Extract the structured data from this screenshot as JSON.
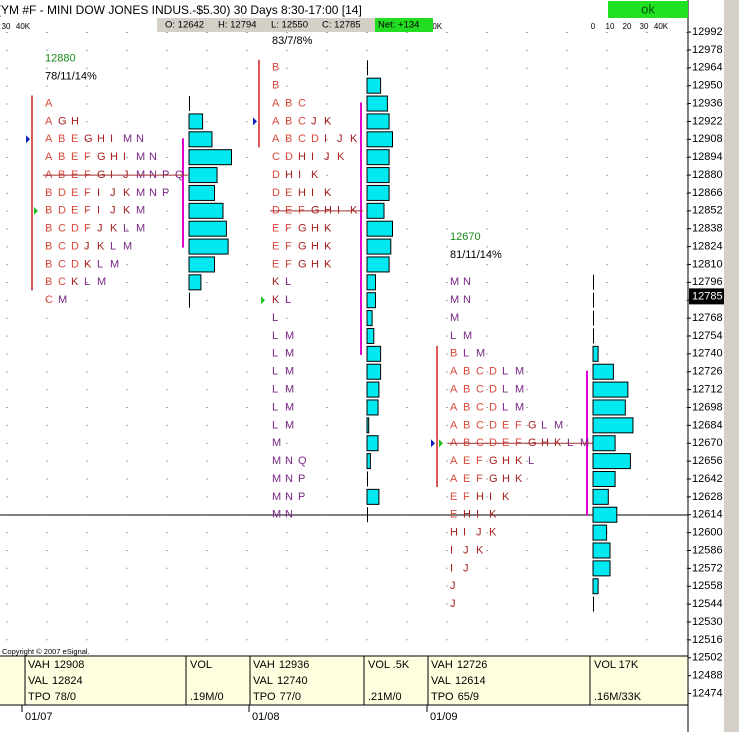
{
  "chart_data": {
    "type": "market-profile",
    "title": "(YM #F - MINI DOW JONES INDUS.-$5.30) 30 Days 8:30-17:00 [14]",
    "quote": [
      "O: 12642",
      "H: 12794",
      "L: 12550",
      "C: 12785",
      "Net: +134"
    ],
    "status": "ok",
    "copyright": "Copyright © 2007 eSignal.",
    "ylim": [
      12465,
      13003
    ],
    "yticks": [
      12992,
      12978,
      12964,
      12950,
      12936,
      12922,
      12908,
      12894,
      12880,
      12866,
      12852,
      12838,
      12824,
      12810,
      12796,
      12782,
      12768,
      12754,
      12740,
      12726,
      12712,
      12698,
      12684,
      12670,
      12656,
      12642,
      12628,
      12614,
      12600,
      12586,
      12572,
      12558,
      12544,
      12530,
      12516,
      12502,
      12488,
      12474
    ],
    "last_price": 12785,
    "xlim": [
      0,
      40
    ],
    "xticks": [
      0,
      10,
      20,
      30,
      {
        "value": 40,
        "label": "40K"
      }
    ],
    "panel_labels": {
      "vah": "VAH",
      "val": "VAL",
      "tpo": "TPO"
    },
    "profiles": [
      {
        "date": "01/07",
        "poc": 12880,
        "stats": "78/11/14%",
        "strike": 12880,
        "open": 12908,
        "close": 12852,
        "vah": 12908,
        "val": 12824,
        "tpo": "78/0",
        "vol_head": "VOL",
        "vol_total": ".19M/0",
        "prices": [
          12936,
          12922,
          12908,
          12894,
          12880,
          12866,
          12852,
          12838,
          12824,
          12810,
          12796,
          12782
        ],
        "letters": [
          [
            "A"
          ],
          [
            "A",
            "G",
            "H"
          ],
          [
            "A",
            "B",
            "E",
            "G",
            "H",
            "I",
            "M",
            "N"
          ],
          [
            "A",
            "B",
            "E",
            "F",
            "G",
            "H",
            "I",
            "M",
            "N"
          ],
          [
            "A",
            "B",
            "E",
            "F",
            "G",
            "I",
            "J",
            "M",
            "N",
            "P",
            "Q"
          ],
          [
            "B",
            "D",
            "E",
            "F",
            "I",
            "J",
            "K",
            "M",
            "N",
            "P"
          ],
          [
            "B",
            "D",
            "E",
            "F",
            "I",
            "J",
            "K",
            "M"
          ],
          [
            "B",
            "C",
            "D",
            "F",
            "J",
            "K",
            "L",
            "M"
          ],
          [
            "B",
            "C",
            "D",
            "J",
            "K",
            "L",
            "M"
          ],
          [
            "B",
            "C",
            "D",
            "K",
            "L",
            "M"
          ],
          [
            "B",
            "C",
            "K",
            "L",
            "M"
          ],
          [
            "C",
            "M"
          ]
        ],
        "volumes": [
          0.5,
          8,
          13.5,
          25,
          16.5,
          15,
          20,
          22,
          23,
          15,
          7,
          0.5
        ]
      },
      {
        "date": "01/08",
        "stats": "83/7/8%",
        "strike": 12852,
        "open": 12922,
        "close": 12782,
        "vah": 12936,
        "val": 12740,
        "tpo": "77/0",
        "vol_head": "VOL .5K",
        "vol_total": ".21M/0",
        "prices": [
          12964,
          12950,
          12936,
          12922,
          12908,
          12894,
          12880,
          12866,
          12852,
          12838,
          12824,
          12810,
          12796,
          12782,
          12768,
          12754,
          12740,
          12726,
          12712,
          12698,
          12684,
          12670,
          12656,
          12642,
          12628,
          12614
        ],
        "letters": [
          [
            "B"
          ],
          [
            "B"
          ],
          [
            "A",
            "B",
            "C"
          ],
          [
            "A",
            "B",
            "C",
            "J",
            "K"
          ],
          [
            "A",
            "B",
            "C",
            "D",
            "I",
            "J",
            "K"
          ],
          [
            "C",
            "D",
            "H",
            "I",
            "J",
            "K"
          ],
          [
            "D",
            "H",
            "I",
            "K"
          ],
          [
            "D",
            "E",
            "H",
            "I",
            "K"
          ],
          [
            "D",
            "E",
            "F",
            "G",
            "H",
            "I",
            "K"
          ],
          [
            "E",
            "F",
            "G",
            "H",
            "K"
          ],
          [
            "E",
            "F",
            "G",
            "H",
            "K"
          ],
          [
            "E",
            "F",
            "G",
            "H",
            "K"
          ],
          [
            "K",
            "L"
          ],
          [
            "K",
            "L"
          ],
          [
            "L"
          ],
          [
            "L",
            "M"
          ],
          [
            "L",
            "M"
          ],
          [
            "L",
            "M"
          ],
          [
            "L",
            "M"
          ],
          [
            "L",
            "M"
          ],
          [
            "L",
            "M"
          ],
          [
            "M"
          ],
          [
            "M",
            "N",
            "Q"
          ],
          [
            "M",
            "N",
            "P"
          ],
          [
            "M",
            "N",
            "P"
          ],
          [
            "M",
            "N"
          ]
        ],
        "volumes": [
          0.5,
          8,
          12,
          13,
          15,
          13,
          13,
          13,
          10,
          15,
          14,
          13,
          5,
          5,
          3,
          4,
          8,
          8,
          7,
          6.5,
          1,
          6.5,
          2,
          0.5,
          7,
          0.5
        ]
      },
      {
        "date": "01/09",
        "poc": 12670,
        "stats": "81/11/14%",
        "strike": 12670,
        "open": 12670,
        "close": 12670,
        "vah": 12726,
        "val": 12614,
        "tpo": "65/9",
        "vol_head": "VOL 17K",
        "vol_total": ".16M/33K",
        "prices": [
          12796,
          12782,
          12768,
          12754,
          12740,
          12726,
          12712,
          12698,
          12684,
          12670,
          12656,
          12642,
          12628,
          12614,
          12600,
          12586,
          12572,
          12558,
          12544
        ],
        "letters": [
          [
            "M",
            "N"
          ],
          [
            "M",
            "N"
          ],
          [
            "M"
          ],
          [
            "L",
            "M"
          ],
          [
            "B",
            "L",
            "M"
          ],
          [
            "A",
            "B",
            "C",
            "D",
            "L",
            "M"
          ],
          [
            "A",
            "B",
            "C",
            "D",
            "L",
            "M"
          ],
          [
            "A",
            "B",
            "C",
            "D",
            "L",
            "M"
          ],
          [
            "A",
            "B",
            "C",
            "D",
            "E",
            "F",
            "G",
            "L",
            "M"
          ],
          [
            "A",
            "B",
            "C",
            "D",
            "E",
            "F",
            "G",
            "H",
            "K",
            "L",
            "M"
          ],
          [
            "A",
            "E",
            "F",
            "G",
            "H",
            "K",
            "L"
          ],
          [
            "A",
            "E",
            "F",
            "G",
            "H",
            "K"
          ],
          [
            "E",
            "F",
            "H",
            "I",
            "K"
          ],
          [
            "E",
            "H",
            "I",
            "K"
          ],
          [
            "H",
            "I",
            "J",
            "K"
          ],
          [
            "I",
            "J",
            "K"
          ],
          [
            "I",
            "J"
          ],
          [
            "J"
          ],
          [
            "J"
          ]
        ],
        "volumes": [
          0.5,
          0.5,
          0.5,
          0.5,
          3,
          12,
          20.5,
          19,
          23.5,
          13,
          22,
          13,
          9,
          14,
          8,
          10,
          10,
          3,
          0.5
        ]
      }
    ]
  }
}
